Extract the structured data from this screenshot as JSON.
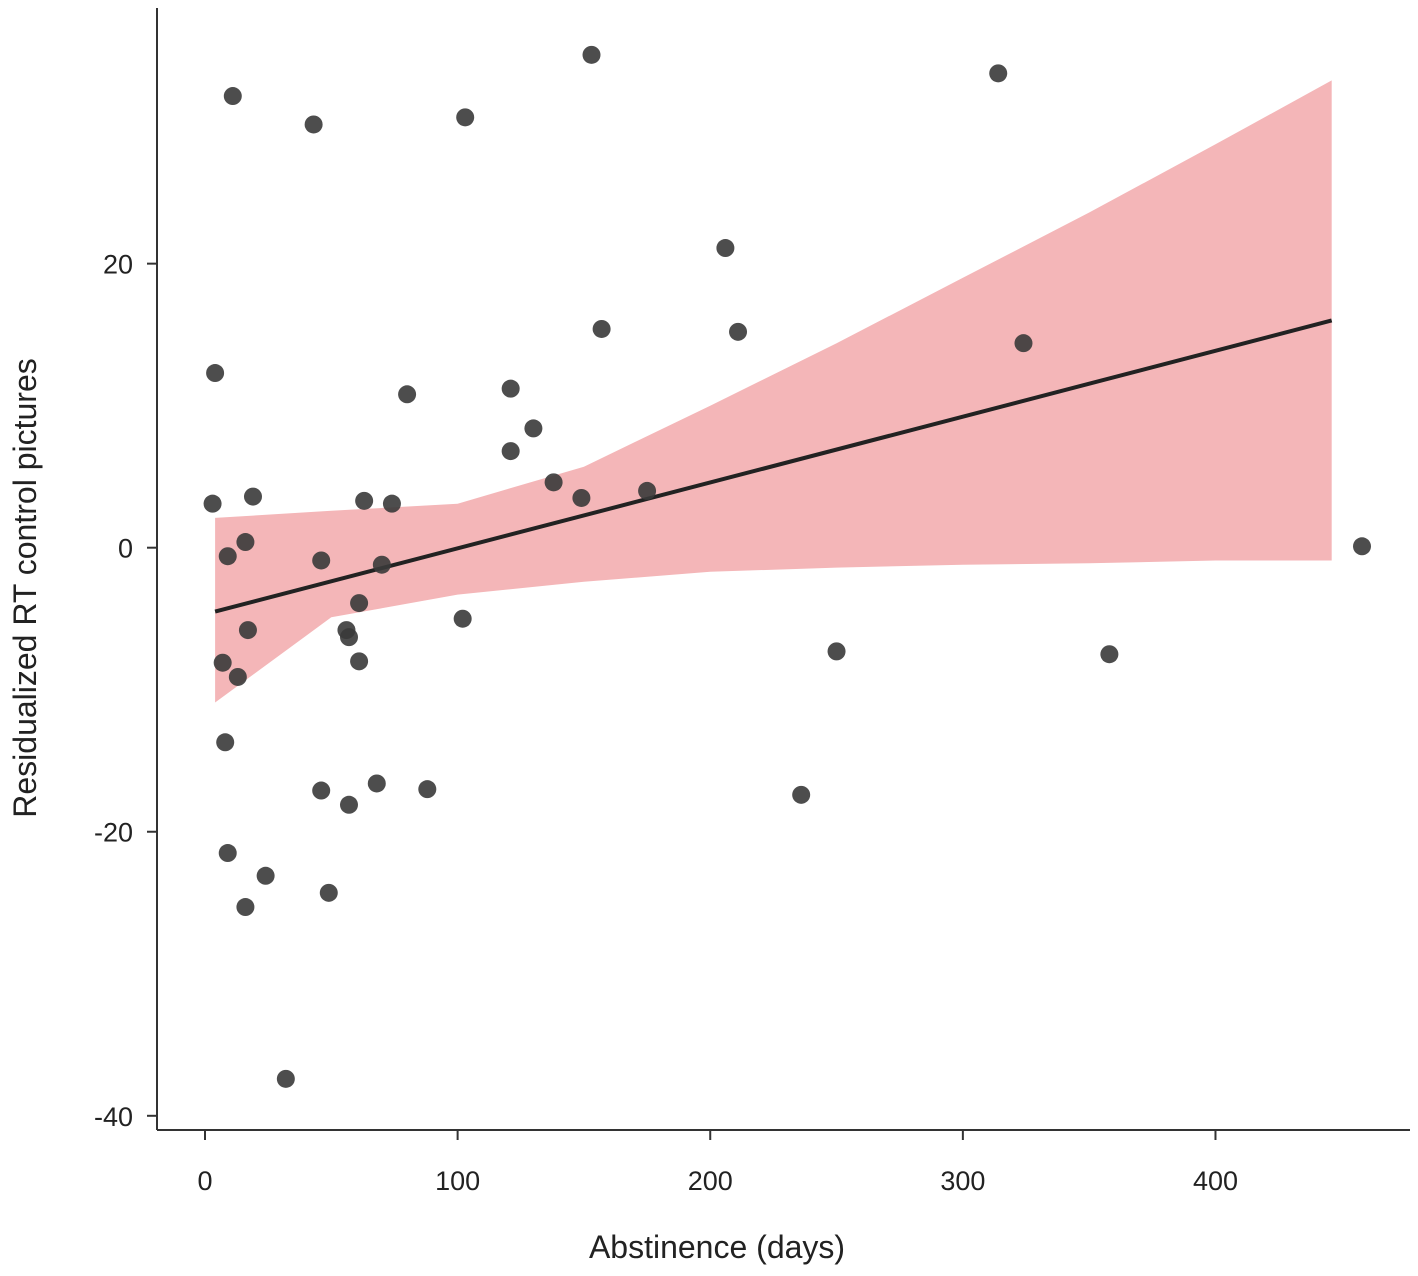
{
  "chart_data": {
    "type": "scatter",
    "title": "",
    "xlabel": "Abstinence (days)",
    "ylabel": "Residualized RT control pictures",
    "xlim": [
      -19,
      477
    ],
    "ylim": [
      -41,
      38
    ],
    "x_ticks": [
      0,
      100,
      200,
      300,
      400
    ],
    "y_ticks": [
      -40,
      -20,
      0,
      20
    ],
    "x_tick_labels": [
      "0",
      "100",
      "200",
      "300",
      "400"
    ],
    "y_tick_labels": [
      "-40",
      "-20",
      "0",
      "20"
    ],
    "grid": false,
    "legend": "none",
    "colors": {
      "points": "#3a3a3a",
      "ribbon": "#f4b6b8",
      "fit_line": "#222222",
      "axes": "#333333"
    },
    "points": [
      {
        "x": 3,
        "y": 3.1
      },
      {
        "x": 4,
        "y": 12.3
      },
      {
        "x": 7,
        "y": -8.1
      },
      {
        "x": 8,
        "y": -13.7
      },
      {
        "x": 9,
        "y": -0.6
      },
      {
        "x": 9,
        "y": -21.5
      },
      {
        "x": 11,
        "y": 31.8
      },
      {
        "x": 13,
        "y": -9.1
      },
      {
        "x": 16,
        "y": 0.4
      },
      {
        "x": 16,
        "y": -25.3
      },
      {
        "x": 17,
        "y": -5.8
      },
      {
        "x": 19,
        "y": 3.6
      },
      {
        "x": 24,
        "y": -23.1
      },
      {
        "x": 32,
        "y": -37.4
      },
      {
        "x": 43,
        "y": 29.8
      },
      {
        "x": 46,
        "y": -0.9
      },
      {
        "x": 46,
        "y": -17.1
      },
      {
        "x": 49,
        "y": -24.3
      },
      {
        "x": 56,
        "y": -5.8
      },
      {
        "x": 57,
        "y": -6.3
      },
      {
        "x": 57,
        "y": -18.1
      },
      {
        "x": 61,
        "y": -3.9
      },
      {
        "x": 61,
        "y": -8.0
      },
      {
        "x": 63,
        "y": 3.3
      },
      {
        "x": 68,
        "y": -16.6
      },
      {
        "x": 70,
        "y": -1.2
      },
      {
        "x": 74,
        "y": 3.1
      },
      {
        "x": 80,
        "y": 10.8
      },
      {
        "x": 88,
        "y": -17.0
      },
      {
        "x": 102,
        "y": -5.0
      },
      {
        "x": 103,
        "y": 30.3
      },
      {
        "x": 121,
        "y": 11.2
      },
      {
        "x": 121,
        "y": 6.8
      },
      {
        "x": 130,
        "y": 8.4
      },
      {
        "x": 138,
        "y": 4.6
      },
      {
        "x": 149,
        "y": 3.5
      },
      {
        "x": 153,
        "y": 34.7
      },
      {
        "x": 157,
        "y": 15.4
      },
      {
        "x": 175,
        "y": 4.0
      },
      {
        "x": 206,
        "y": 21.1
      },
      {
        "x": 211,
        "y": 15.2
      },
      {
        "x": 236,
        "y": -17.4
      },
      {
        "x": 250,
        "y": -7.3
      },
      {
        "x": 314,
        "y": 33.4
      },
      {
        "x": 324,
        "y": 14.4
      },
      {
        "x": 358,
        "y": -7.5
      },
      {
        "x": 458,
        "y": 0.1
      }
    ],
    "fit_line": {
      "x": [
        4,
        446
      ],
      "y": [
        -4.5,
        16.0
      ]
    },
    "confidence_band": {
      "x": [
        4,
        50,
        100,
        150,
        200,
        250,
        300,
        350,
        400,
        446
      ],
      "lower": [
        -10.9,
        -4.9,
        -3.3,
        -2.4,
        -1.7,
        -1.4,
        -1.2,
        -1.1,
        -0.9,
        -0.9
      ],
      "upper": [
        2.1,
        2.6,
        3.1,
        5.7,
        10.0,
        14.4,
        19.0,
        23.6,
        28.4,
        32.9
      ]
    }
  }
}
